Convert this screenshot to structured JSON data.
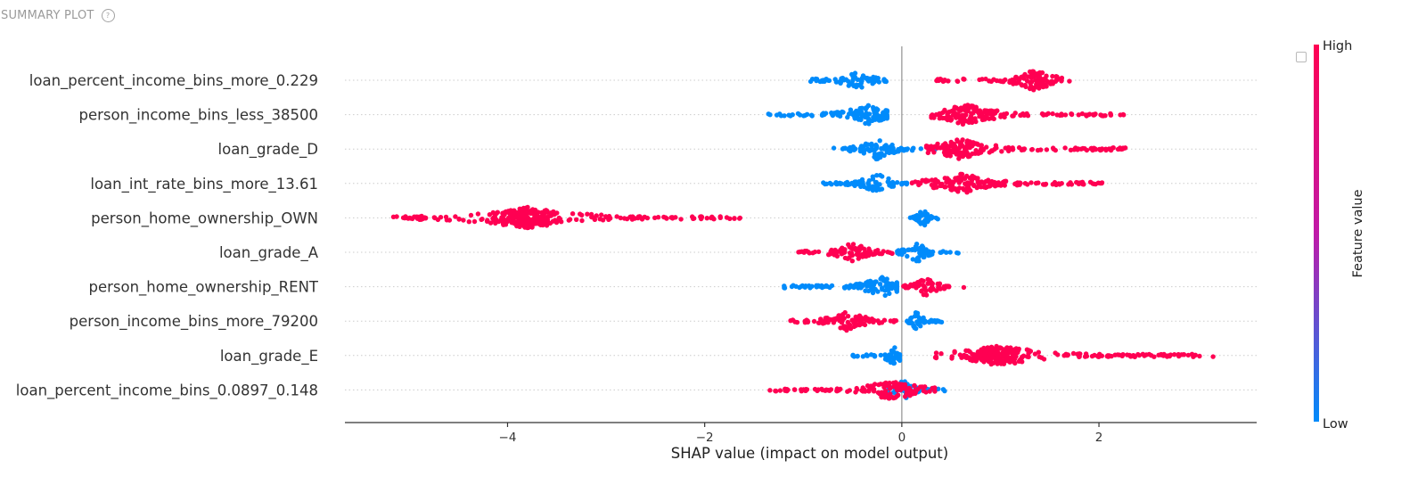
{
  "header": {
    "title": "SUMMARY PLOT",
    "help_icon": "question-circle-icon"
  },
  "colors": {
    "high": "#ff0052",
    "low": "#008bfb",
    "axis": "#333333",
    "zero_line": "#999999",
    "grid": "#cccccc"
  },
  "chart_data": {
    "type": "scatter",
    "subtype": "shap-beeswarm",
    "title": "",
    "xlabel": "SHAP value (impact on model output)",
    "xlim": [
      -5.65,
      3.6
    ],
    "xticks": [
      -4,
      -2,
      0,
      2
    ],
    "xtick_labels": [
      "−4",
      "−2",
      "0",
      "2"
    ],
    "features": [
      "loan_percent_income_bins_more_0.229",
      "person_income_bins_less_38500",
      "loan_grade_D",
      "loan_int_rate_bins_more_13.61",
      "person_home_ownership_OWN",
      "loan_grade_A",
      "person_home_ownership_RENT",
      "person_income_bins_more_79200",
      "loan_grade_E",
      "loan_percent_income_bins_0.0897_0.148"
    ],
    "colorbar": {
      "label": "Feature value",
      "high_label": "High",
      "low_label": "Low"
    },
    "series": [
      {
        "feature": "loan_percent_income_bins_more_0.229",
        "high": {
          "min": 0.32,
          "max": 1.7,
          "peak": 1.35
        },
        "low": {
          "min": -0.95,
          "max": -0.15,
          "peak": -0.45
        }
      },
      {
        "feature": "person_income_bins_less_38500",
        "high": {
          "min": 0.3,
          "max": 2.25,
          "peak": 0.65
        },
        "low": {
          "min": -1.45,
          "max": -0.15,
          "peak": -0.35
        }
      },
      {
        "feature": "loan_grade_D",
        "high": {
          "min": 0.25,
          "max": 2.27,
          "peak": 0.6
        },
        "low": {
          "min": -0.7,
          "max": 0.35,
          "peak": -0.25
        }
      },
      {
        "feature": "loan_int_rate_bins_more_13.61",
        "high": {
          "min": 0.1,
          "max": 2.05,
          "peak": 0.6
        },
        "low": {
          "min": -0.85,
          "max": 0.05,
          "peak": -0.25
        }
      },
      {
        "feature": "person_home_ownership_OWN",
        "high": {
          "min": -5.2,
          "max": -1.6,
          "peak": -3.8
        },
        "low": {
          "min": 0.08,
          "max": 0.38,
          "peak": 0.22
        }
      },
      {
        "feature": "loan_grade_A",
        "high": {
          "min": -1.05,
          "max": -0.05,
          "peak": -0.5
        },
        "low": {
          "min": -0.05,
          "max": 0.6,
          "peak": 0.15
        }
      },
      {
        "feature": "person_home_ownership_RENT",
        "high": {
          "min": 0.0,
          "max": 0.65,
          "peak": 0.25
        },
        "low": {
          "min": -1.2,
          "max": -0.05,
          "peak": -0.2
        }
      },
      {
        "feature": "person_income_bins_more_79200",
        "high": {
          "min": -1.2,
          "max": -0.05,
          "peak": -0.55
        },
        "low": {
          "min": 0.05,
          "max": 0.42,
          "peak": 0.15
        }
      },
      {
        "feature": "loan_grade_E",
        "high": {
          "min": 0.33,
          "max": 3.2,
          "peak": 1.0
        },
        "low": {
          "min": -0.5,
          "max": -0.02,
          "peak": -0.08
        }
      },
      {
        "feature": "loan_percent_income_bins_0.0897_0.148",
        "high": {
          "min": -1.35,
          "max": 0.35,
          "peak": -0.1
        },
        "low": {
          "min": -0.15,
          "max": 0.45,
          "peak": 0.02
        }
      }
    ]
  }
}
